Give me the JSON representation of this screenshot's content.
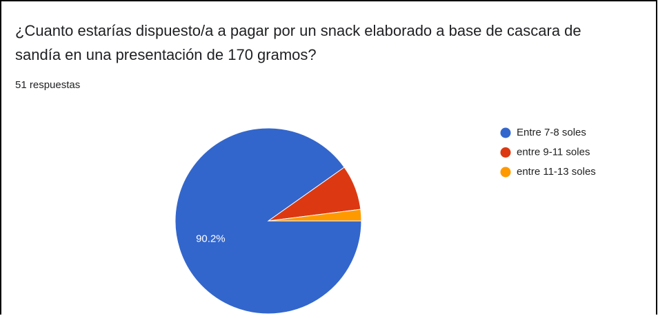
{
  "chart_data": {
    "type": "pie",
    "title": [
      "¿Cuanto estarías dispuesto/a a pagar por un snack elaborado a base de cascara de",
      "sandía en una presentación de 170 gramos?"
    ],
    "subtitle": "51 respuestas",
    "categories": [
      "Entre 7-8 soles",
      "entre 9-11 soles",
      "entre 11-13 soles"
    ],
    "values": [
      90.2,
      7.8,
      2.0
    ],
    "value_labels": [
      "90.2%",
      null,
      null
    ],
    "colors": [
      "#3366cc",
      "#dc3912",
      "#ff9900"
    ],
    "legend": "right"
  }
}
